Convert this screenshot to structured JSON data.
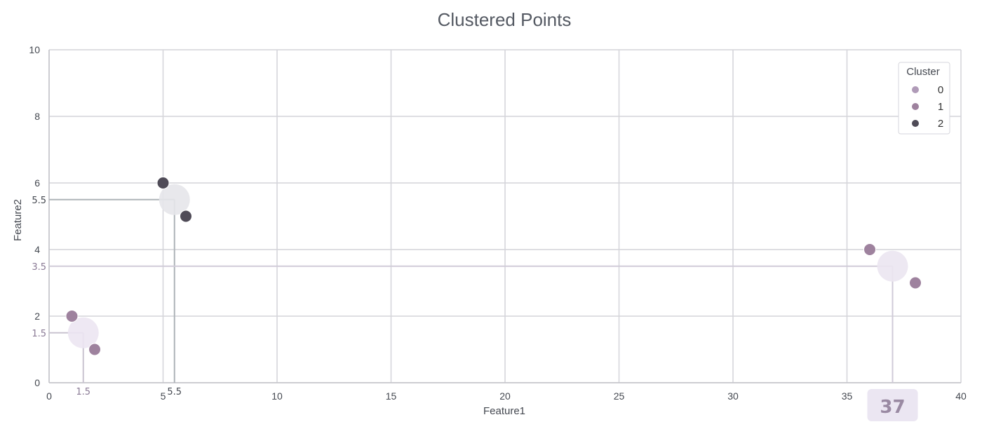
{
  "chart_data": {
    "type": "scatter",
    "title": "Clustered Points",
    "xlabel": "Feature1",
    "ylabel": "Feature2",
    "xlim": [
      0,
      40
    ],
    "ylim": [
      0,
      10
    ],
    "x_ticks": [
      0,
      5,
      10,
      15,
      20,
      25,
      30,
      35,
      40
    ],
    "y_ticks": [
      0,
      2,
      4,
      6,
      8,
      10
    ],
    "grid": true,
    "legend": {
      "title": "Cluster",
      "location": "top-right",
      "entries": [
        {
          "label": "0",
          "color": "#b09bb8"
        },
        {
          "label": "1",
          "color": "#9e829e"
        },
        {
          "label": "2",
          "color": "#4f4b57"
        }
      ]
    },
    "series": [
      {
        "name": "0",
        "color": "#9e829e",
        "points": [
          {
            "x": 1.0,
            "y": 2.0
          },
          {
            "x": 2.0,
            "y": 1.0
          }
        ]
      },
      {
        "name": "1",
        "color": "#9e829e",
        "points": [
          {
            "x": 36.0,
            "y": 4.0
          },
          {
            "x": 38.0,
            "y": 3.0
          }
        ]
      },
      {
        "name": "2",
        "color": "#4f4b57",
        "points": [
          {
            "x": 5.0,
            "y": 6.0
          },
          {
            "x": 6.0,
            "y": 5.0
          }
        ]
      }
    ],
    "centroids": [
      {
        "cluster": "0",
        "x": 1.5,
        "y": 1.5,
        "x_label": "1.5",
        "y_label": "1.5",
        "color": "#ece6f2",
        "line_color": "#c9c3d0",
        "label_color": "#8a7a95"
      },
      {
        "cluster": "2",
        "x": 5.5,
        "y": 5.5,
        "x_label": "5.5",
        "y_label": "5.5",
        "color": "#e6e6ea",
        "line_color": "#aeb4b8",
        "label_color": "#444850"
      },
      {
        "cluster": "1",
        "x": 37,
        "y": 3.5,
        "x_label": "37",
        "y_label": "3.5",
        "color": "#ebe6f1",
        "line_color": "#d0cbd8",
        "label_color": "#8a7a95",
        "highlight": true
      }
    ]
  },
  "colors": {
    "grid": "#d4d4d9",
    "axis": "#c4c4ca",
    "highlight_bg": "#ebe6f2"
  }
}
